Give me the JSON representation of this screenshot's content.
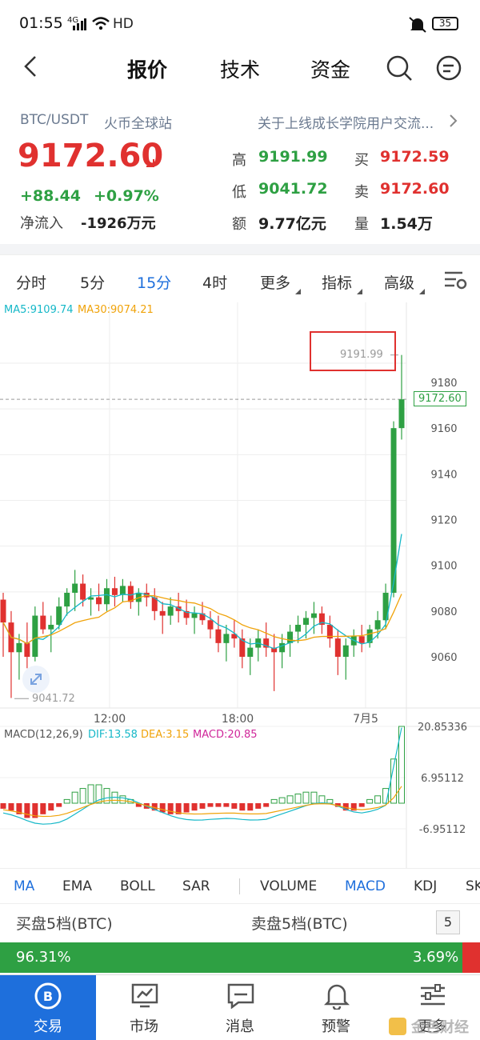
{
  "status": {
    "time": "01:55",
    "network": "4G",
    "hd": "HD",
    "battery": "35"
  },
  "nav": {
    "tabs": [
      "报价",
      "技术",
      "资金"
    ],
    "active": "报价"
  },
  "header": {
    "symbol": "BTC/USDT",
    "exchange": "火币全球站",
    "notice": "关于上线成长学院用户交流...",
    "price": "9172.60",
    "change": "+88.44",
    "change_pct": "+0.97%",
    "netflow_label": "净流入",
    "netflow_value": "-1926万元"
  },
  "stats": {
    "high_label": "高",
    "high": "9191.99",
    "low_label": "低",
    "low": "9041.72",
    "amount_label": "额",
    "amount": "9.77亿元",
    "bid_label": "买",
    "bid": "9172.59",
    "ask_label": "卖",
    "ask": "9172.60",
    "volume_label": "量",
    "volume": "1.54万"
  },
  "periods": [
    "分时",
    "5分",
    "15分",
    "4时",
    "更多",
    "指标",
    "高级"
  ],
  "ma_legend": {
    "ma5": "MA5:9109.74",
    "ma30": "MA30:9074.21"
  },
  "price_axis": [
    "9180",
    "9160",
    "9140",
    "9120",
    "9100",
    "9080",
    "9060"
  ],
  "markers": {
    "high": "9191.99",
    "low": "9041.72",
    "current": "9172.60"
  },
  "time_axis": [
    "12:00",
    "18:00",
    "7月5"
  ],
  "macd": {
    "title": "MACD(12,26,9)",
    "dif": "DIF:13.58",
    "dea": "DEA:3.15",
    "macd": "MACD:20.85",
    "axis": [
      "20.85336",
      "6.95112",
      "-6.95112",
      "-20.85336"
    ]
  },
  "indicators": [
    "MA",
    "EMA",
    "BOLL",
    "SAR",
    "VOLUME",
    "MACD",
    "KDJ",
    "SK"
  ],
  "orderbook": {
    "bid_title": "买盘5档(BTC)",
    "ask_title": "卖盘5档(BTC)",
    "depth": "5",
    "bid_pct": "96.31%",
    "ask_pct": "3.69%"
  },
  "bottom_nav": [
    "交易",
    "市场",
    "消息",
    "预警",
    "更多"
  ],
  "watermark": "金色财经",
  "colors": {
    "up": "#2ea043",
    "down": "#e0312f",
    "accent": "#1e6fdc",
    "ma5": "#16b8c8",
    "ma30": "#f0a30a",
    "dea": "#f0a30a",
    "macd": "#d0279a"
  },
  "chart_data": {
    "type": "candlestick",
    "interval": "15分",
    "ylim": [
      9041.72,
      9191.99
    ],
    "ohlc": [
      [
        9085,
        9088,
        9060,
        9075
      ],
      [
        9075,
        9080,
        9042,
        9062
      ],
      [
        9062,
        9070,
        9050,
        9066
      ],
      [
        9066,
        9075,
        9055,
        9060
      ],
      [
        9060,
        9082,
        9058,
        9078
      ],
      [
        9078,
        9084,
        9070,
        9072
      ],
      [
        9072,
        9078,
        9062,
        9074
      ],
      [
        9074,
        9086,
        9072,
        9082
      ],
      [
        9082,
        9090,
        9078,
        9088
      ],
      [
        9088,
        9098,
        9080,
        9092
      ],
      [
        9092,
        9096,
        9082,
        9085
      ],
      [
        9085,
        9090,
        9078,
        9086
      ],
      [
        9086,
        9092,
        9080,
        9083
      ],
      [
        9083,
        9094,
        9080,
        9090
      ],
      [
        9090,
        9095,
        9082,
        9087
      ],
      [
        9087,
        9094,
        9084,
        9091
      ],
      [
        9091,
        9093,
        9081,
        9084
      ],
      [
        9084,
        9090,
        9078,
        9088
      ],
      [
        9088,
        9092,
        9082,
        9086
      ],
      [
        9086,
        9090,
        9076,
        9080
      ],
      [
        9080,
        9084,
        9070,
        9078
      ],
      [
        9078,
        9086,
        9074,
        9082
      ],
      [
        9082,
        9088,
        9075,
        9080
      ],
      [
        9080,
        9085,
        9074,
        9077
      ],
      [
        9077,
        9082,
        9070,
        9079
      ],
      [
        9079,
        9084,
        9074,
        9076
      ],
      [
        9076,
        9080,
        9068,
        9072
      ],
      [
        9072,
        9078,
        9062,
        9066
      ],
      [
        9066,
        9074,
        9058,
        9070
      ],
      [
        9070,
        9076,
        9064,
        9068
      ],
      [
        9068,
        9072,
        9055,
        9060
      ],
      [
        9060,
        9068,
        9052,
        9064
      ],
      [
        9064,
        9072,
        9058,
        9068
      ],
      [
        9068,
        9075,
        9060,
        9064
      ],
      [
        9064,
        9070,
        9045,
        9062
      ],
      [
        9062,
        9070,
        9055,
        9066
      ],
      [
        9066,
        9074,
        9060,
        9071
      ],
      [
        9071,
        9078,
        9066,
        9074
      ],
      [
        9074,
        9080,
        9068,
        9077
      ],
      [
        9077,
        9084,
        9070,
        9079
      ],
      [
        9079,
        9082,
        9070,
        9074
      ],
      [
        9074,
        9078,
        9064,
        9068
      ],
      [
        9068,
        9072,
        9052,
        9060
      ],
      [
        9060,
        9068,
        9050,
        9065
      ],
      [
        9065,
        9072,
        9060,
        9069
      ],
      [
        9069,
        9074,
        9062,
        9066
      ],
      [
        9066,
        9074,
        9064,
        9072
      ],
      [
        9072,
        9080,
        9068,
        9076
      ],
      [
        9076,
        9092,
        9072,
        9088
      ],
      [
        9088,
        9163,
        9086,
        9160
      ],
      [
        9160,
        9192,
        9155,
        9172.6
      ]
    ],
    "ma5_current": 9109.74,
    "ma30_current": 9074.21,
    "macd_hist": [
      -1.5,
      -2,
      -3,
      -4,
      -4,
      -3,
      -2,
      -1,
      1,
      3,
      4,
      5,
      5,
      4,
      3,
      2,
      1,
      -1,
      -1.5,
      -2,
      -2.5,
      -3,
      -3,
      -2.5,
      -2,
      -1.5,
      -1,
      -1,
      -1,
      -1.5,
      -2,
      -2,
      -1.5,
      -1,
      1,
      1.5,
      2,
      2.5,
      3,
      3,
      2,
      1,
      -1,
      -2,
      -2,
      -1,
      1,
      2,
      4,
      12,
      20.85
    ]
  }
}
